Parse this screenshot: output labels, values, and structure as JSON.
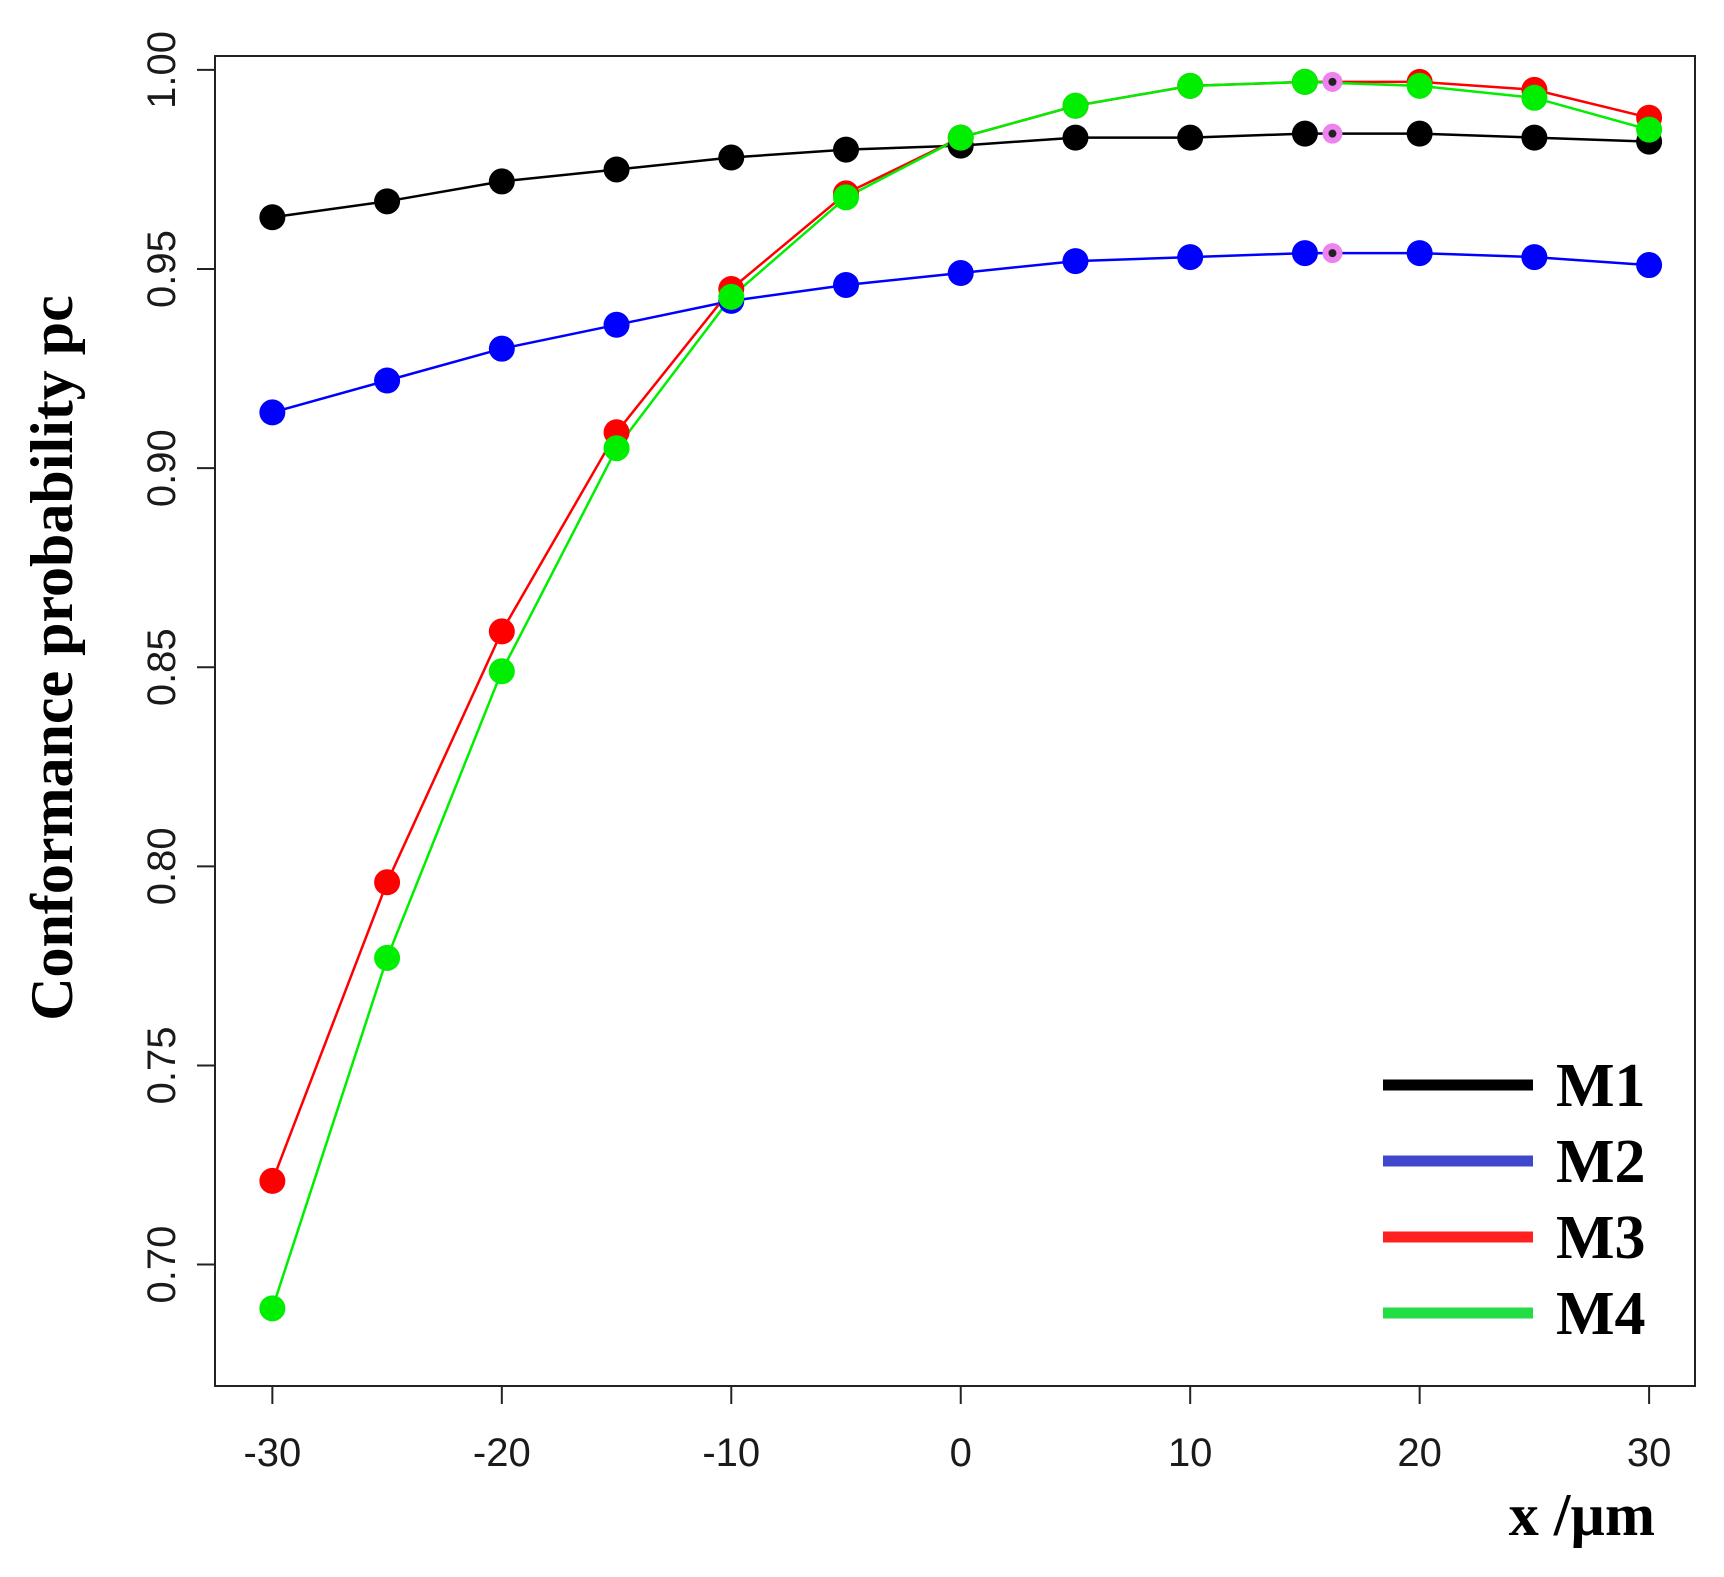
{
  "chart_data": {
    "type": "line",
    "title": "",
    "xlabel": "x /µm",
    "ylabel": "Conformance probability pc",
    "xlim": [
      -32.5,
      32
    ],
    "ylim": [
      0.6695,
      1.0035
    ],
    "x_ticks": [
      -30,
      -20,
      -10,
      0,
      10,
      20,
      30
    ],
    "x_tick_labels": [
      "-30",
      "-20",
      "-10",
      "0",
      "10",
      "20",
      "30"
    ],
    "y_ticks": [
      0.7,
      0.75,
      0.8,
      0.85,
      0.9,
      0.95,
      1.0
    ],
    "y_tick_labels": [
      "0.70",
      "0.75",
      "0.80",
      "0.85",
      "0.90",
      "0.95",
      "1.00"
    ],
    "grid": false,
    "legend_position": "bottom-right",
    "x": [
      -30,
      -25,
      -20,
      -15,
      -10,
      -5,
      0,
      5,
      10,
      15,
      20,
      25,
      30
    ],
    "series": [
      {
        "name": "M1",
        "color": "#000000",
        "values": [
          0.963,
          0.967,
          0.972,
          0.975,
          0.978,
          0.98,
          0.981,
          0.983,
          0.983,
          0.984,
          0.984,
          0.983,
          0.982
        ]
      },
      {
        "name": "M2",
        "color": "#0000ff",
        "values": [
          0.914,
          0.922,
          0.93,
          0.936,
          0.942,
          0.946,
          0.949,
          0.952,
          0.953,
          0.954,
          0.954,
          0.953,
          0.951
        ]
      },
      {
        "name": "M3",
        "color": "#ff0000",
        "values": [
          0.721,
          0.796,
          0.859,
          0.909,
          0.945,
          0.969,
          0.983,
          0.991,
          0.996,
          0.997,
          0.997,
          0.995,
          0.988
        ]
      },
      {
        "name": "M4",
        "color": "#00ee00",
        "values": [
          0.689,
          0.777,
          0.849,
          0.905,
          0.943,
          0.968,
          0.983,
          0.991,
          0.996,
          0.997,
          0.996,
          0.993,
          0.985
        ]
      }
    ],
    "optimum_markers": {
      "color": "#ee82ee",
      "x": 16.2,
      "values": [
        0.984,
        0.954,
        0.997
      ]
    },
    "legend_entries": [
      {
        "label": "M1",
        "color": "#000000"
      },
      {
        "label": "M2",
        "color": "#3f48cc"
      },
      {
        "label": "M3",
        "color": "#ff2020"
      },
      {
        "label": "M4",
        "color": "#22dd44"
      }
    ]
  }
}
